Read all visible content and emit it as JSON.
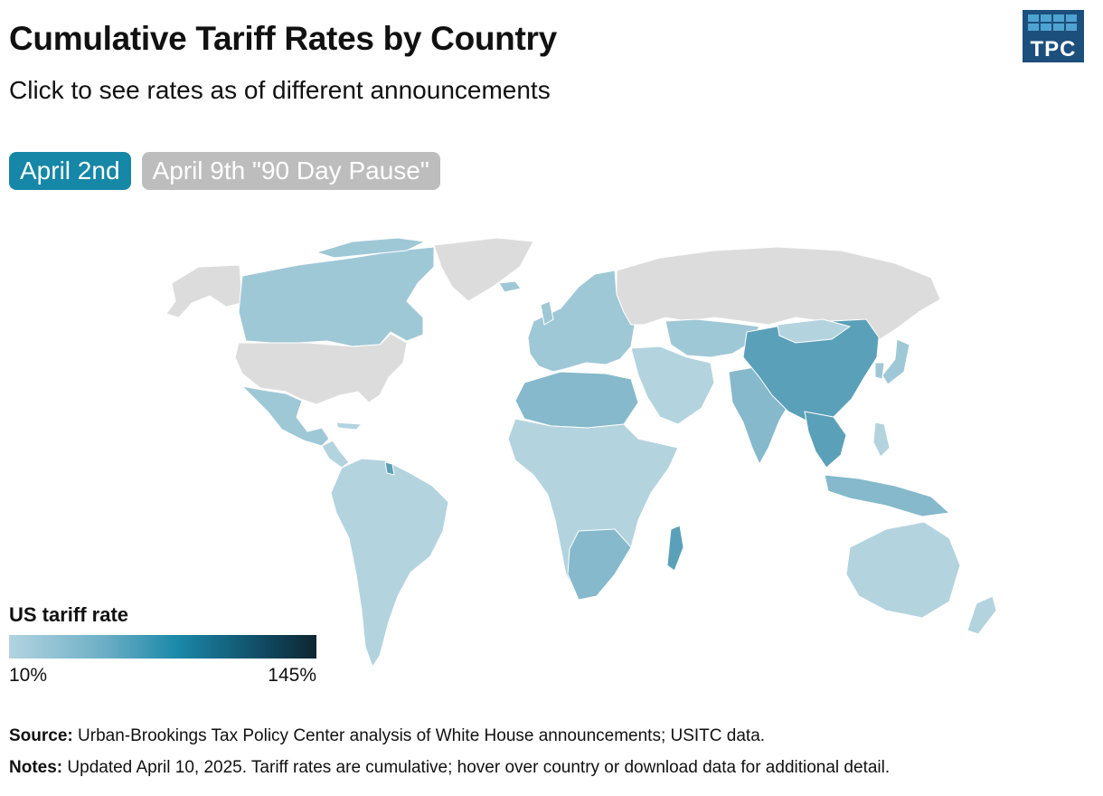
{
  "header": {
    "title": "Cumulative Tariff Rates by Country",
    "subtitle": "Click to see rates as of different announcements",
    "logo_text": "TPC"
  },
  "tabs": [
    {
      "label": "April 2nd",
      "active": true
    },
    {
      "label": "April 9th \"90 Day Pause\"",
      "active": false
    }
  ],
  "legend": {
    "title": "US tariff rate",
    "min_label": "10%",
    "max_label": "145%",
    "colors": [
      "#b3d4e0",
      "#6fb0c6",
      "#1b88a8",
      "#12506a",
      "#0d2630"
    ]
  },
  "map": {
    "colors": {
      "no_data": "#dcdcdc",
      "low": "#b3d3df",
      "mid_low": "#9fc8d7",
      "mid": "#85b9cb",
      "high": "#5ba0b9",
      "border": "#ffffff"
    }
  },
  "footer": {
    "source_label": "Source:",
    "source_text": " Urban-Brookings Tax Policy Center analysis of White House announcements; USITC data.",
    "notes_label": "Notes:",
    "notes_text": " Updated April 10, 2025. Tariff rates are cumulative; hover over country or download data for additional detail."
  }
}
